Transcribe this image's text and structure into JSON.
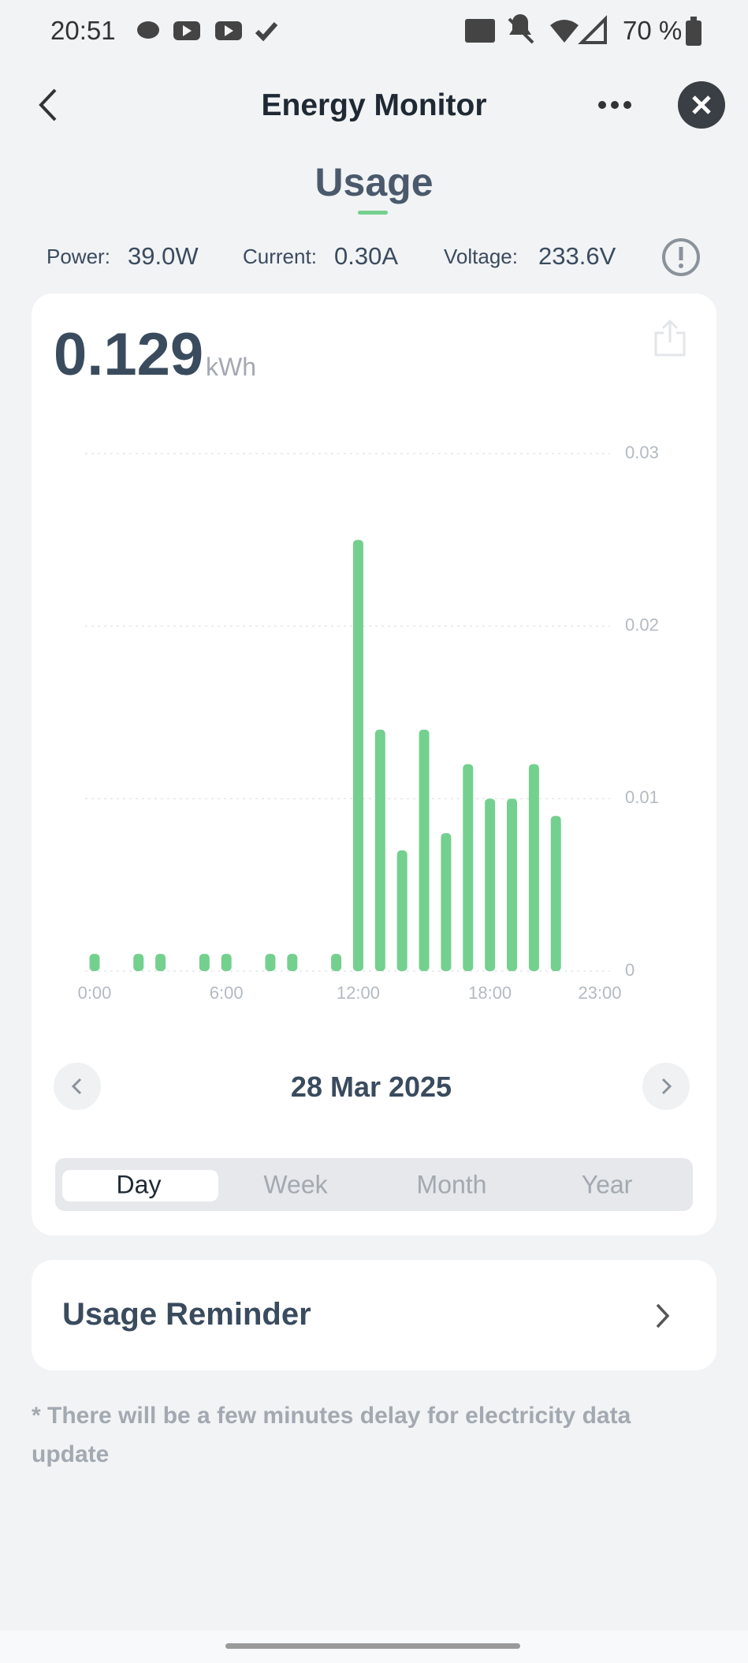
{
  "status_bar": {
    "time": "20:51",
    "battery": "70 %"
  },
  "header": {
    "title": "Energy Monitor"
  },
  "tab": "Usage",
  "stats": [
    {
      "label": "Power:",
      "value": "39.0W"
    },
    {
      "label": "Current:",
      "value": "0.30A"
    },
    {
      "label": "Voltage:",
      "value": "233.6V"
    }
  ],
  "summary": {
    "value": "0.129",
    "unit": "kWh"
  },
  "chart_data": {
    "type": "bar",
    "categories": [
      "0:00",
      null,
      null,
      null,
      null,
      null,
      "6:00",
      null,
      null,
      null,
      null,
      null,
      "12:00",
      null,
      null,
      null,
      null,
      null,
      "18:00",
      null,
      null,
      null,
      null,
      "23:00"
    ],
    "values": [
      0.001,
      0,
      0.001,
      0.001,
      0,
      0.001,
      0.001,
      0,
      0.001,
      0.001,
      0,
      0.001,
      0.025,
      0.014,
      0.007,
      0.014,
      0.008,
      0.012,
      0.01,
      0.01,
      0.012,
      0.009,
      0,
      0
    ],
    "color": "#74d08e",
    "ylim": [
      0,
      0.03
    ],
    "yticks": [
      0,
      0.01,
      0.02,
      0.03
    ],
    "grid": true
  },
  "date": "28 Mar 2025",
  "periods": [
    "Day",
    "Week",
    "Month",
    "Year"
  ],
  "reminder": {
    "title": "Usage Reminder"
  },
  "footnote": "* There will be a few minutes delay for electricity data update"
}
